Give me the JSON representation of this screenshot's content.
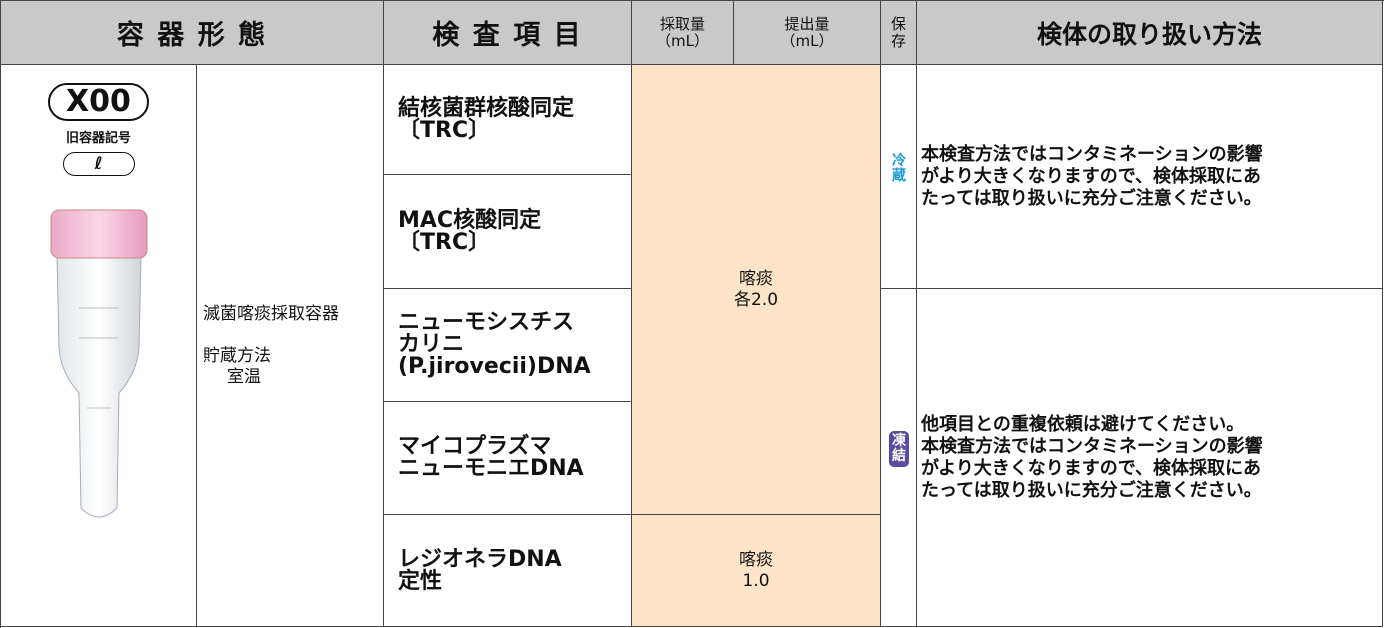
{
  "header": {
    "container_form": "容 器 形 態",
    "test_item": "検 査 項 目",
    "collect_volume": [
      "採取量",
      "（mL）"
    ],
    "submit_volume": [
      "提出量",
      "（mL）"
    ],
    "storage": [
      "保",
      "存"
    ],
    "handling": "検体の取り扱い方法"
  },
  "container": {
    "code": "X00",
    "old_code_label": "旧容器記号",
    "old_code": "ℓ",
    "name": "滅菌喀痰採取容器",
    "storage_label": "貯蔵方法",
    "storage_value": "室温"
  },
  "tests": [
    [
      "結核菌群核酸同定",
      "〔TRC〕"
    ],
    [
      "MAC核酸同定",
      "〔TRC〕"
    ],
    [
      "ニューモシスチス",
      "カリニ",
      "(P.jirovecii)DNA"
    ],
    [
      "マイコプラズマ",
      "ニューモニエDNA"
    ],
    [
      "レジオネラDNA",
      "定性"
    ]
  ],
  "volumes": [
    {
      "specimen": "喀痰",
      "amount": "各2.0"
    },
    {
      "specimen": "喀痰",
      "amount": "1.0"
    }
  ],
  "storage_groups": [
    {
      "storage": [
        "冷",
        "蔵"
      ],
      "handling": [
        "本検査方法ではコンタミネーションの影響",
        "がより大きくなりますので、検体採取にあ",
        "たっては取り扱いに充分ご注意ください。"
      ]
    },
    {
      "storage": [
        "凍",
        "結"
      ],
      "handling": [
        "他項目との重複依頼は避けてください。",
        "本検査方法ではコンタミネーションの影響",
        "がより大きくなりますので、検体採取にあ",
        "たっては取り扱いに充分ご注意ください。"
      ]
    }
  ]
}
